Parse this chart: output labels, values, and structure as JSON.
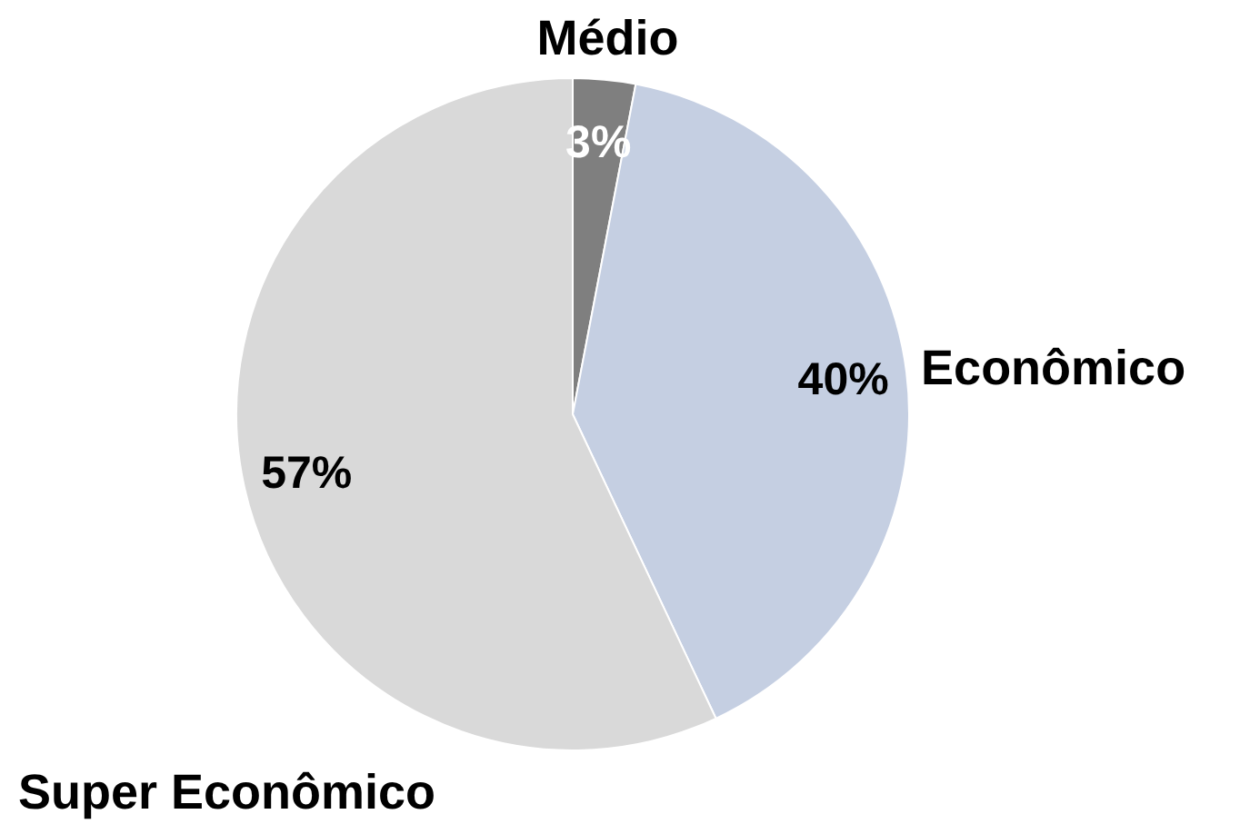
{
  "chart_data": {
    "type": "pie",
    "categories": [
      "Médio",
      "Econômico",
      "Super Econômico"
    ],
    "values": [
      3,
      40,
      57
    ],
    "colors": [
      "#7f7f7f",
      "#c5cfe2",
      "#d9d9d9"
    ],
    "value_labels": [
      "3%",
      "40%",
      "57%"
    ]
  }
}
